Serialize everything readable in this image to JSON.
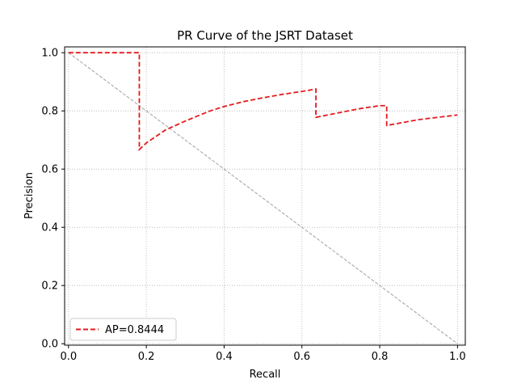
{
  "chart_data": {
    "type": "line",
    "title": "PR Curve of the JSRT Dataset",
    "xlabel": "Recall",
    "ylabel": "Precision",
    "xlim": [
      -0.01,
      1.02
    ],
    "ylim": [
      -0.005,
      1.02
    ],
    "xticks": [
      0.0,
      0.2,
      0.4,
      0.6,
      0.8,
      1.0
    ],
    "xtick_labels": [
      "0.0",
      "0.2",
      "0.4",
      "0.6",
      "0.8",
      "1.0"
    ],
    "yticks": [
      0.0,
      0.2,
      0.4,
      0.6,
      0.8,
      1.0
    ],
    "ytick_labels": [
      "0.0",
      "0.2",
      "0.4",
      "0.6",
      "0.8",
      "1.0"
    ],
    "grid": true,
    "legend_position": "lower-left",
    "series": [
      {
        "name": "AP=0.8444",
        "color": "#e41a1c",
        "style": "dashed",
        "x": [
          0.0,
          0.182,
          0.182,
          0.2,
          0.25,
          0.3,
          0.364,
          0.4,
          0.45,
          0.5,
          0.55,
          0.6,
          0.636,
          0.636,
          0.7,
          0.75,
          0.8,
          0.818,
          0.818,
          0.9,
          1.0
        ],
        "y": [
          1.0,
          1.0,
          0.667,
          0.69,
          0.735,
          0.765,
          0.8,
          0.815,
          0.832,
          0.845,
          0.857,
          0.867,
          0.875,
          0.778,
          0.795,
          0.808,
          0.818,
          0.818,
          0.75,
          0.77,
          0.786
        ]
      },
      {
        "name": "",
        "color": "#a0a0a0",
        "style": "dashed",
        "x": [
          0.0,
          1.0
        ],
        "y": [
          1.0,
          0.0
        ]
      }
    ]
  }
}
